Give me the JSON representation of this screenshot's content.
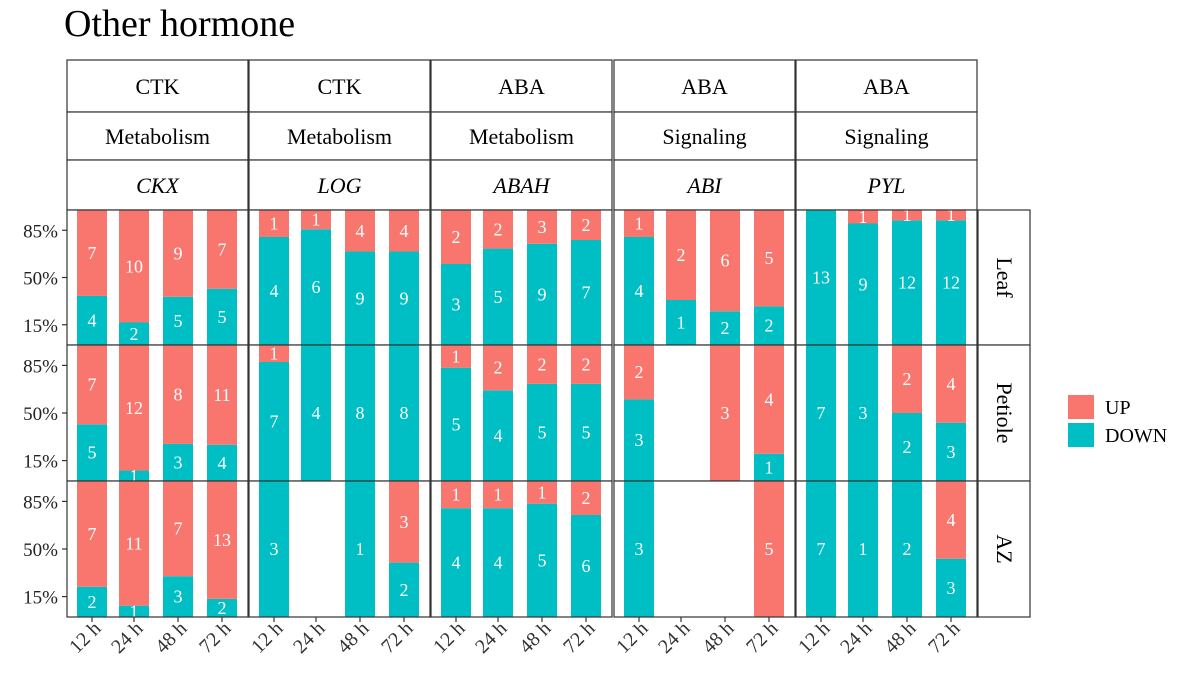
{
  "chart_data": {
    "type": "bar",
    "title": "Other hormone",
    "stacked": true,
    "percent_scale": true,
    "x_categories": [
      "12 h",
      "24 h",
      "48 h",
      "72 h"
    ],
    "y_ticks": [
      "85%",
      "50%",
      "15%"
    ],
    "y_tick_values": [
      0.85,
      0.5,
      0.15
    ],
    "ylim": [
      0,
      1
    ],
    "grid": false,
    "legend": {
      "position": "right",
      "entries": [
        {
          "key": "UP",
          "label": "UP",
          "color": "#F8766D"
        },
        {
          "key": "DOWN",
          "label": "DOWN",
          "color": "#00BFC4"
        }
      ]
    },
    "rows": [
      "Leaf",
      "Petiole",
      "AZ"
    ],
    "panels": [
      {
        "hormone": "CTK",
        "process": "Metabolism",
        "gene": "CKX",
        "data": {
          "Leaf": {
            "UP": [
              7,
              10,
              9,
              7
            ],
            "DOWN": [
              4,
              2,
              5,
              5
            ]
          },
          "Petiole": {
            "UP": [
              7,
              12,
              8,
              11
            ],
            "DOWN": [
              5,
              1,
              3,
              4
            ]
          },
          "AZ": {
            "UP": [
              7,
              11,
              7,
              13
            ],
            "DOWN": [
              2,
              1,
              3,
              2
            ]
          }
        }
      },
      {
        "hormone": "CTK",
        "process": "Metabolism",
        "gene": "LOG",
        "data": {
          "Leaf": {
            "UP": [
              1,
              1,
              4,
              4
            ],
            "DOWN": [
              4,
              6,
              9,
              9
            ]
          },
          "Petiole": {
            "UP": [
              1,
              0,
              0,
              0
            ],
            "DOWN": [
              7,
              4,
              8,
              8
            ]
          },
          "AZ": {
            "UP": [
              0,
              0,
              0,
              3
            ],
            "DOWN": [
              3,
              0,
              1,
              2
            ]
          }
        }
      },
      {
        "hormone": "ABA",
        "process": "Metabolism",
        "gene": "ABAH",
        "data": {
          "Leaf": {
            "UP": [
              2,
              2,
              3,
              2
            ],
            "DOWN": [
              3,
              5,
              9,
              7
            ]
          },
          "Petiole": {
            "UP": [
              1,
              2,
              2,
              2
            ],
            "DOWN": [
              5,
              4,
              5,
              5
            ]
          },
          "AZ": {
            "UP": [
              1,
              1,
              1,
              2
            ],
            "DOWN": [
              4,
              4,
              5,
              6
            ]
          }
        }
      },
      {
        "hormone": "ABA",
        "process": "Signaling",
        "gene": "ABI",
        "data": {
          "Leaf": {
            "UP": [
              1,
              2,
              6,
              5
            ],
            "DOWN": [
              4,
              1,
              2,
              2
            ]
          },
          "Petiole": {
            "UP": [
              2,
              0,
              3,
              4
            ],
            "DOWN": [
              3,
              0,
              0,
              1
            ]
          },
          "AZ": {
            "UP": [
              0,
              0,
              0,
              5
            ],
            "DOWN": [
              3,
              0,
              0,
              0
            ]
          }
        }
      },
      {
        "hormone": "ABA",
        "process": "Signaling",
        "gene": "PYL",
        "data": {
          "Leaf": {
            "UP": [
              0,
              1,
              1,
              1
            ],
            "DOWN": [
              13,
              9,
              12,
              12
            ]
          },
          "Petiole": {
            "UP": [
              0,
              0,
              2,
              4
            ],
            "DOWN": [
              7,
              3,
              2,
              3
            ]
          },
          "AZ": {
            "UP": [
              0,
              0,
              0,
              4
            ],
            "DOWN": [
              7,
              1,
              2,
              3
            ]
          }
        }
      }
    ]
  }
}
